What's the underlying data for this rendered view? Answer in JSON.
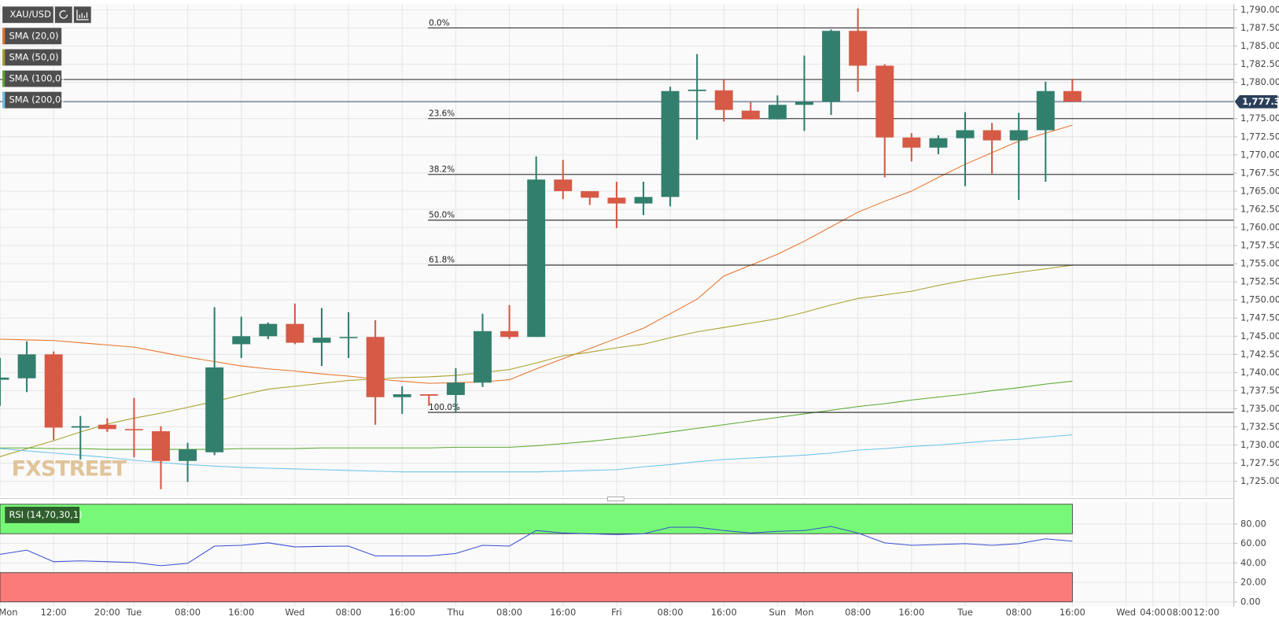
{
  "chart_data": [
    {
      "type": "candlestick",
      "symbol": "XAU/USD",
      "watermark": "FXSTREET",
      "categories": [
        "Mon",
        null,
        "12:00",
        null,
        "20:00",
        "Tue",
        null,
        "08:00",
        null,
        "16:00",
        null,
        "Wed",
        null,
        "08:00",
        null,
        "16:00",
        null,
        "Thu",
        null,
        "08:00",
        null,
        "16:00",
        null,
        "Fri",
        null,
        "08:00",
        null,
        "16:00",
        null,
        "Sun",
        "Mon",
        null,
        "08:00",
        null,
        "16:00",
        null,
        "Tue",
        null,
        "08:00",
        null,
        "16:00",
        null,
        "Wed",
        "04:00",
        "08:00",
        "12:00"
      ],
      "open": [
        1739.0,
        1739.2,
        1742.5,
        1732.4,
        1732.8,
        1732.2,
        1731.9,
        1727.8,
        1729.0,
        1743.9,
        1745.0,
        1746.7,
        1744.1,
        1744.8,
        1744.9,
        1736.6,
        1737.0,
        1736.9,
        1738.6,
        1745.7,
        1744.9,
        1766.6,
        1765.0,
        1764.1,
        1763.3,
        1764.2,
        1778.8,
        1778.9,
        1776.1,
        1774.9,
        1776.9,
        1777.3,
        1787.1,
        1782.3,
        1772.4,
        1771.0,
        1772.3,
        1773.4,
        1772.0,
        1773.4,
        1778.8,
        null,
        null,
        null,
        null,
        null
      ],
      "high": [
        1742.0,
        1744.3,
        1742.9,
        1734.0,
        1733.7,
        1736.5,
        1732.6,
        1730.3,
        1749.0,
        1747.7,
        1746.9,
        1749.5,
        1748.9,
        1748.3,
        1747.2,
        1738.1,
        1737.0,
        1740.6,
        1748.1,
        1749.3,
        1769.8,
        1769.3,
        1765.0,
        1766.3,
        1766.3,
        1779.4,
        1783.9,
        1780.4,
        1777.3,
        1778.2,
        1783.7,
        1787.3,
        1790.2,
        1782.5,
        1773.0,
        1772.7,
        1775.9,
        1774.4,
        1775.8,
        1780.1,
        1780.5,
        null,
        null,
        null,
        null,
        null
      ],
      "low": [
        1735.4,
        1737.3,
        1730.7,
        1728.0,
        1731.8,
        1728.3,
        1723.9,
        1724.9,
        1728.6,
        1742.0,
        1744.6,
        1743.9,
        1740.9,
        1742.0,
        1732.8,
        1734.3,
        1735.4,
        1734.5,
        1738.0,
        1744.6,
        1744.9,
        1763.9,
        1763.1,
        1759.9,
        1761.7,
        1762.9,
        1772.1,
        1774.6,
        1774.9,
        1774.9,
        1773.3,
        1775.5,
        1778.7,
        1766.9,
        1769.1,
        1770.1,
        1765.7,
        1767.4,
        1763.8,
        1766.3,
        1777.3,
        null,
        null,
        null,
        null,
        null
      ],
      "close": [
        1739.3,
        1742.5,
        1732.4,
        1732.6,
        1732.2,
        1732.1,
        1727.8,
        1729.4,
        1740.7,
        1745.0,
        1746.7,
        1744.1,
        1744.8,
        1744.9,
        1736.6,
        1737.0,
        1736.8,
        1738.6,
        1745.7,
        1744.9,
        1766.6,
        1765.0,
        1764.1,
        1763.3,
        1764.2,
        1778.8,
        1779.0,
        1776.2,
        1774.9,
        1776.9,
        1777.3,
        1787.1,
        1782.3,
        1772.4,
        1771.0,
        1772.3,
        1773.4,
        1772.0,
        1773.4,
        1778.8,
        1777.33,
        null,
        null,
        null,
        null,
        null
      ],
      "up_color": "#327f6e",
      "down_color": "#d65a46",
      "series": [
        {
          "name": "SMA (20,0)",
          "color": "#e8742a",
          "values": [
            1744.6,
            1744.5,
            1744.4,
            1744.1,
            1743.8,
            1743.5,
            1742.8,
            1742.1,
            1741.5,
            1740.9,
            1740.5,
            1740.2,
            1739.8,
            1739.5,
            1739.1,
            1738.8,
            1738.5,
            1738.6,
            1738.7,
            1739.0,
            1740.5,
            1741.9,
            1743.3,
            1744.7,
            1746.1,
            1748.1,
            1750.1,
            1753.3,
            1754.8,
            1756.3,
            1758.1,
            1760.1,
            1762.1,
            1763.6,
            1765.0,
            1766.9,
            1768.7,
            1770.3,
            1771.9,
            1773.0,
            1774.1,
            null,
            null,
            null,
            null,
            null
          ]
        },
        {
          "name": "SMA (50,0)",
          "color": "#a9a02a",
          "values": [
            1728.4,
            1729.5,
            1730.6,
            1731.8,
            1732.9,
            1733.7,
            1734.4,
            1735.2,
            1736.0,
            1736.9,
            1737.7,
            1738.1,
            1738.5,
            1738.9,
            1739.1,
            1739.3,
            1739.4,
            1739.6,
            1740.0,
            1740.4,
            1741.3,
            1742.3,
            1742.8,
            1743.4,
            1743.9,
            1744.8,
            1745.6,
            1746.2,
            1746.8,
            1747.4,
            1748.3,
            1749.3,
            1750.2,
            1750.7,
            1751.2,
            1752.0,
            1752.7,
            1753.3,
            1753.8,
            1754.3,
            1754.8,
            null,
            null,
            null,
            null,
            null
          ]
        },
        {
          "name": "SMA (100,0)",
          "color": "#5aa832",
          "values": [
            1729.6,
            1729.6,
            1729.5,
            1729.5,
            1729.4,
            1729.4,
            1729.4,
            1729.4,
            1729.4,
            1729.5,
            1729.5,
            1729.5,
            1729.6,
            1729.6,
            1729.6,
            1729.6,
            1729.6,
            1729.7,
            1729.7,
            1729.7,
            1729.9,
            1730.2,
            1730.5,
            1730.9,
            1731.3,
            1731.8,
            1732.3,
            1732.8,
            1733.3,
            1733.8,
            1734.3,
            1734.8,
            1735.3,
            1735.7,
            1736.2,
            1736.6,
            1737.0,
            1737.5,
            1737.9,
            1738.4,
            1738.8,
            null,
            null,
            null,
            null,
            null
          ]
        },
        {
          "name": "SMA (200,0)",
          "color": "#6fc3ea",
          "values": [
            1729.5,
            1729.2,
            1728.9,
            1728.6,
            1728.3,
            1727.9,
            1727.6,
            1727.3,
            1727.1,
            1726.9,
            1726.8,
            1726.7,
            1726.6,
            1726.5,
            1726.4,
            1726.3,
            1726.3,
            1726.3,
            1726.3,
            1726.3,
            1726.3,
            1726.4,
            1726.5,
            1726.6,
            1727.0,
            1727.3,
            1727.7,
            1728.0,
            1728.2,
            1728.4,
            1728.6,
            1728.9,
            1729.3,
            1729.5,
            1729.8,
            1730.0,
            1730.3,
            1730.6,
            1730.8,
            1731.1,
            1731.4,
            null,
            null,
            null,
            null,
            null
          ]
        }
      ],
      "fibonacci": [
        {
          "label": "0.0%",
          "value": 1787.5
        },
        {
          "label": "23.6%",
          "value": 1775.0
        },
        {
          "label": "38.2%",
          "value": 1767.3
        },
        {
          "label": "50.0%",
          "value": 1761.0
        },
        {
          "label": "61.8%",
          "value": 1754.8
        },
        {
          "label": "100.0%",
          "value": 1734.5
        }
      ],
      "horizontal_line": 1780.4,
      "last_price": {
        "value": 1777.33,
        "label": "1,777.33"
      },
      "ylim": [
        1722.96,
        1790.79
      ],
      "yticks": [
        {
          "value": 1725,
          "label": "1,725.00"
        },
        {
          "value": 1727.5,
          "label": "1,727.50"
        },
        {
          "value": 1730,
          "label": "1,730.00"
        },
        {
          "value": 1732.5,
          "label": "1,732.50"
        },
        {
          "value": 1735,
          "label": "1,735.00"
        },
        {
          "value": 1737.5,
          "label": "1,737.50"
        },
        {
          "value": 1740,
          "label": "1,740.00"
        },
        {
          "value": 1742.5,
          "label": "1,742.50"
        },
        {
          "value": 1745,
          "label": "1,745.00"
        },
        {
          "value": 1747.5,
          "label": "1,747.50"
        },
        {
          "value": 1750,
          "label": "1,750.00"
        },
        {
          "value": 1752.5,
          "label": "1,752.50"
        },
        {
          "value": 1755,
          "label": "1,755.00"
        },
        {
          "value": 1757.5,
          "label": "1,757.50"
        },
        {
          "value": 1760,
          "label": "1,760.00"
        },
        {
          "value": 1762.5,
          "label": "1,762.50"
        },
        {
          "value": 1765,
          "label": "1,765.00"
        },
        {
          "value": 1767.5,
          "label": "1,767.50"
        },
        {
          "value": 1770,
          "label": "1,770.00"
        },
        {
          "value": 1772.5,
          "label": "1,772.50"
        },
        {
          "value": 1775,
          "label": "1,775.00"
        },
        {
          "value": 1777.5,
          "label": "1,777.50"
        },
        {
          "value": 1780,
          "label": "1,780.00"
        },
        {
          "value": 1782.5,
          "label": "1,782.50"
        },
        {
          "value": 1785,
          "label": "1,785.00"
        },
        {
          "value": 1787.5,
          "label": "1,787.50"
        },
        {
          "value": 1790,
          "label": "1,790.00"
        }
      ],
      "grid": true
    },
    {
      "type": "line",
      "name": "RSI (14,70,30,1)",
      "color": "#3a4fd0",
      "values": [
        48.8,
        53.1,
        41.3,
        42.1,
        41.3,
        40.4,
        37.1,
        39.6,
        57.3,
        58.1,
        60.6,
        56.4,
        57.0,
        57.3,
        47.2,
        47.2,
        47.2,
        49.7,
        58.1,
        57.3,
        73.3,
        70.7,
        69.9,
        69.1,
        69.9,
        76.6,
        76.6,
        73.3,
        70.7,
        72.4,
        73.3,
        77.5,
        70.7,
        60.6,
        58.1,
        58.9,
        59.8,
        58.1,
        59.8,
        64.8,
        62.3,
        null,
        null,
        null,
        null,
        null
      ],
      "overbought": 70,
      "oversold": 30,
      "overbought_color": "#77f977",
      "oversold_color": "#fb7b7b",
      "ylim": [
        -5.05,
        102.74
      ],
      "yticks": [
        {
          "value": 0,
          "label": "0.00"
        },
        {
          "value": 20,
          "label": "20.00"
        },
        {
          "value": 40,
          "label": "40.00"
        },
        {
          "value": 60,
          "label": "60.00"
        },
        {
          "value": 80,
          "label": "80.00"
        }
      ],
      "grid": true
    }
  ]
}
